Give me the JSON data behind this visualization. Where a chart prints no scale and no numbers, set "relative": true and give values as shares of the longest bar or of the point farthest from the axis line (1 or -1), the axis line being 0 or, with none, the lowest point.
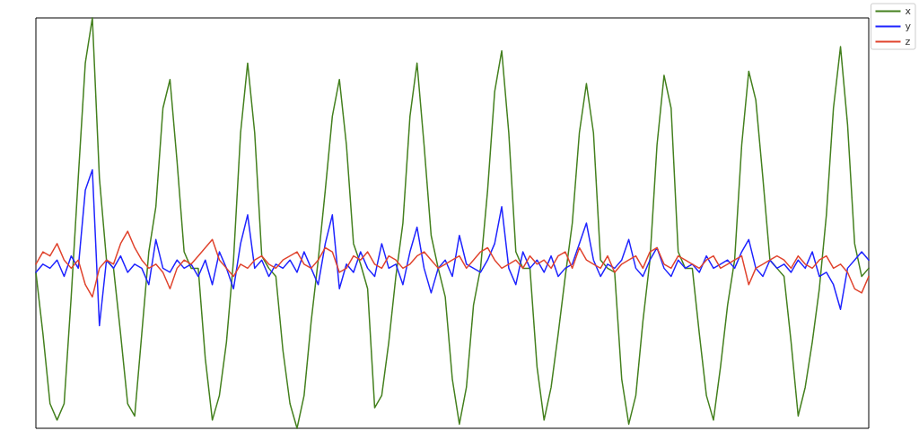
{
  "chart_data": {
    "type": "line",
    "relative": true,
    "grid": false,
    "legend": "top right",
    "marker": "none",
    "line_style": "solid",
    "categories": [
      null,
      null,
      null,
      null,
      null,
      null,
      null,
      null,
      null,
      null,
      null,
      null,
      null,
      null,
      null,
      null,
      null,
      null,
      null,
      null,
      null,
      null,
      null,
      null,
      null,
      null,
      null,
      null,
      null,
      null,
      null,
      null,
      null,
      null,
      null,
      null,
      null,
      null,
      null,
      null,
      null,
      null,
      null,
      null,
      null,
      null,
      null,
      null,
      null,
      null,
      null,
      null,
      null,
      null,
      null,
      null,
      null,
      null,
      null,
      null,
      null,
      null,
      null,
      null,
      null,
      null,
      null,
      null,
      null,
      null,
      null,
      null,
      null,
      null,
      null,
      null,
      null,
      null,
      null,
      null,
      null,
      null,
      null,
      null,
      null,
      null,
      null,
      null,
      null,
      null,
      null,
      null,
      null,
      null,
      null,
      null,
      null,
      null,
      null,
      null,
      null,
      null,
      null,
      null,
      null,
      null,
      null,
      null,
      null,
      null,
      null,
      null,
      null,
      null,
      null,
      null,
      null,
      null,
      null
    ],
    "series": [
      {
        "name": "x",
        "color": "#44801e",
        "values": [
          0.38,
          0.23,
          0.06,
          0.02,
          0.06,
          0.32,
          0.61,
          0.89,
          1,
          0.61,
          0.41,
          0.39,
          0.23,
          0.06,
          0.03,
          0.23,
          0.43,
          0.54,
          0.78,
          0.85,
          0.65,
          0.43,
          0.39,
          0.39,
          0.17,
          0.02,
          0.08,
          0.21,
          0.41,
          0.72,
          0.89,
          0.72,
          0.42,
          0.39,
          0.37,
          0.19,
          0.06,
          0,
          0.08,
          0.26,
          0.41,
          0.58,
          0.76,
          0.85,
          0.69,
          0.45,
          0.4,
          0.34,
          0.05,
          0.08,
          0.21,
          0.37,
          0.5,
          0.76,
          0.89,
          0.69,
          0.47,
          0.39,
          0.32,
          0.12,
          0.01,
          0.1,
          0.3,
          0.39,
          0.58,
          0.82,
          0.92,
          0.72,
          0.43,
          0.39,
          0.39,
          0.15,
          0.02,
          0.1,
          0.23,
          0.37,
          0.5,
          0.72,
          0.84,
          0.72,
          0.41,
          0.39,
          0.38,
          0.12,
          0.01,
          0.08,
          0.26,
          0.41,
          0.69,
          0.86,
          0.78,
          0.43,
          0.39,
          0.39,
          0.23,
          0.08,
          0.02,
          0.15,
          0.3,
          0.41,
          0.69,
          0.87,
          0.8,
          0.61,
          0.41,
          0.39,
          0.37,
          0.21,
          0.03,
          0.1,
          0.21,
          0.34,
          0.52,
          0.78,
          0.93,
          0.74,
          0.45,
          0.37,
          0.39
        ]
      },
      {
        "name": "y",
        "color": "#1f24ff",
        "values": [
          0.38,
          0.4,
          0.39,
          0.41,
          0.37,
          0.42,
          0.39,
          0.58,
          0.63,
          0.25,
          0.41,
          0.39,
          0.42,
          0.38,
          0.4,
          0.39,
          0.35,
          0.46,
          0.39,
          0.38,
          0.41,
          0.39,
          0.4,
          0.37,
          0.41,
          0.35,
          0.43,
          0.39,
          0.34,
          0.45,
          0.52,
          0.39,
          0.41,
          0.37,
          0.4,
          0.39,
          0.41,
          0.38,
          0.43,
          0.39,
          0.35,
          0.45,
          0.52,
          0.34,
          0.4,
          0.38,
          0.43,
          0.39,
          0.37,
          0.45,
          0.39,
          0.4,
          0.35,
          0.43,
          0.49,
          0.39,
          0.33,
          0.39,
          0.41,
          0.37,
          0.47,
          0.4,
          0.39,
          0.38,
          0.41,
          0.45,
          0.54,
          0.39,
          0.35,
          0.43,
          0.39,
          0.41,
          0.38,
          0.42,
          0.37,
          0.39,
          0.4,
          0.45,
          0.5,
          0.41,
          0.37,
          0.4,
          0.39,
          0.41,
          0.46,
          0.39,
          0.37,
          0.41,
          0.44,
          0.39,
          0.37,
          0.41,
          0.39,
          0.4,
          0.38,
          0.42,
          0.39,
          0.4,
          0.41,
          0.39,
          0.43,
          0.46,
          0.39,
          0.37,
          0.41,
          0.39,
          0.4,
          0.38,
          0.41,
          0.39,
          0.43,
          0.37,
          0.38,
          0.35,
          0.29,
          0.39,
          0.41,
          0.43,
          0.41
        ]
      },
      {
        "name": "z",
        "color": "#e0442e",
        "values": [
          0.4,
          0.43,
          0.42,
          0.45,
          0.41,
          0.39,
          0.41,
          0.35,
          0.32,
          0.39,
          0.41,
          0.4,
          0.45,
          0.48,
          0.44,
          0.41,
          0.39,
          0.4,
          0.38,
          0.34,
          0.39,
          0.41,
          0.4,
          0.42,
          0.44,
          0.46,
          0.41,
          0.39,
          0.37,
          0.4,
          0.39,
          0.41,
          0.42,
          0.4,
          0.39,
          0.41,
          0.42,
          0.43,
          0.4,
          0.39,
          0.41,
          0.44,
          0.43,
          0.38,
          0.39,
          0.42,
          0.41,
          0.43,
          0.4,
          0.39,
          0.42,
          0.41,
          0.39,
          0.4,
          0.42,
          0.43,
          0.41,
          0.39,
          0.4,
          0.41,
          0.42,
          0.39,
          0.41,
          0.43,
          0.44,
          0.41,
          0.39,
          0.4,
          0.41,
          0.39,
          0.42,
          0.4,
          0.41,
          0.39,
          0.42,
          0.43,
          0.39,
          0.44,
          0.41,
          0.4,
          0.39,
          0.42,
          0.38,
          0.4,
          0.41,
          0.42,
          0.39,
          0.43,
          0.44,
          0.4,
          0.39,
          0.42,
          0.41,
          0.4,
          0.39,
          0.41,
          0.42,
          0.39,
          0.4,
          0.41,
          0.42,
          0.35,
          0.39,
          0.4,
          0.41,
          0.42,
          0.41,
          0.39,
          0.42,
          0.4,
          0.39,
          0.41,
          0.42,
          0.39,
          0.4,
          0.38,
          0.34,
          0.33,
          0.37
        ]
      }
    ]
  }
}
